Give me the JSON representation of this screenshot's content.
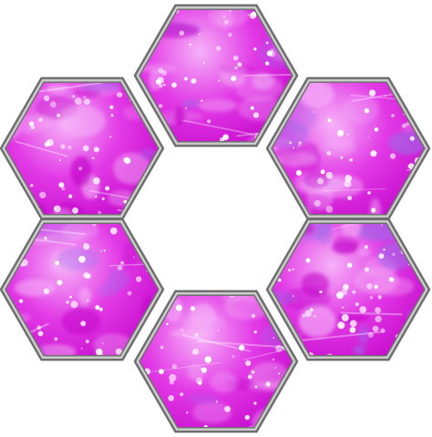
{
  "colors": {
    "background": "#ffffff",
    "tile_base": "#e23ae6",
    "tile_light": "#f6b2f8",
    "tile_dark": "#c000c8",
    "sparkle": "#ffffff",
    "accent_purple": "#9a6ee8",
    "frame_outer": "#6f6f6f",
    "frame_inner": "#cfcfcf"
  },
  "tiles": [
    {
      "name": "hex-tile-top",
      "pattern": "glitter-pink"
    },
    {
      "name": "hex-tile-upper-left",
      "pattern": "glitter-pink"
    },
    {
      "name": "hex-tile-upper-right",
      "pattern": "glitter-pink"
    },
    {
      "name": "hex-tile-lower-left",
      "pattern": "glitter-pink"
    },
    {
      "name": "hex-tile-lower-right",
      "pattern": "glitter-pink"
    },
    {
      "name": "hex-tile-bottom",
      "pattern": "glitter-pink"
    }
  ],
  "center_hole": {
    "name": "center-hexagon-hole",
    "fill": "empty"
  }
}
